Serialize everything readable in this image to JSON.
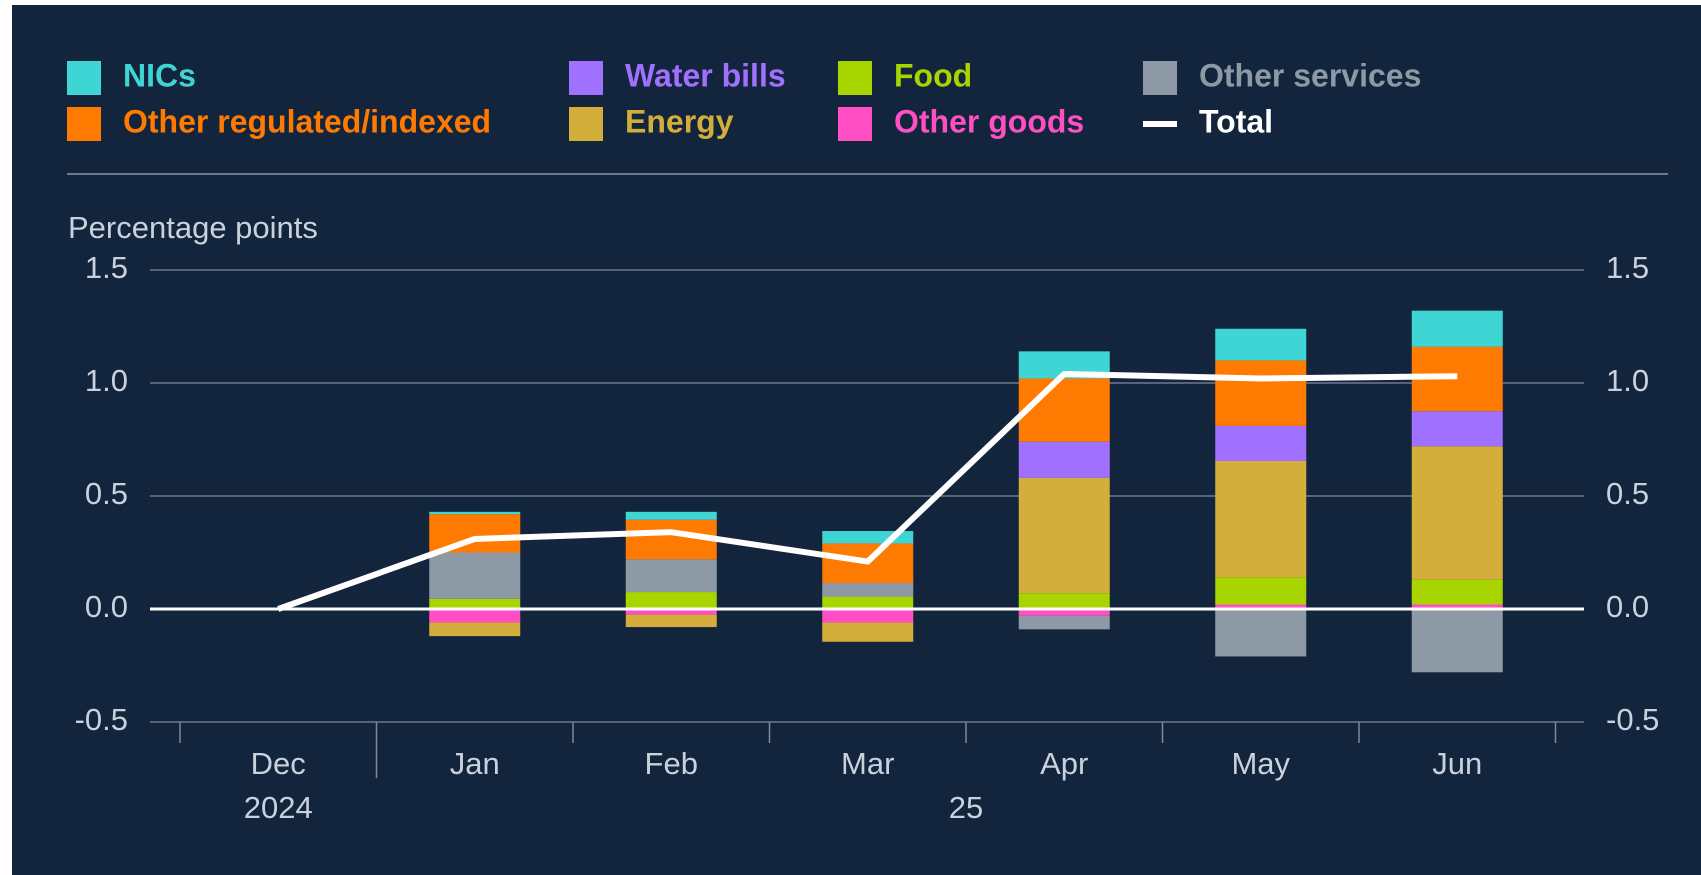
{
  "chart_data": {
    "type": "bar",
    "stacked": true,
    "axis_label": "Percentage points",
    "categories": [
      "Dec",
      "Jan",
      "Feb",
      "Mar",
      "Apr",
      "May",
      "Jun"
    ],
    "year_labels": [
      "2024",
      "25"
    ],
    "ylim": [
      -0.5,
      1.5
    ],
    "yticks": [
      {
        "value": -0.5,
        "label": "-0.5"
      },
      {
        "value": 0,
        "label": "0.0"
      },
      {
        "value": 0.5,
        "label": "0.5"
      },
      {
        "value": 1,
        "label": "1.0"
      },
      {
        "value": 1.5,
        "label": "1.5"
      }
    ],
    "grid": true,
    "series": [
      {
        "name": "Other goods",
        "color": "#ff4fc3",
        "values": [
          null,
          -0.06,
          -0.025,
          -0.06,
          -0.03,
          0.02,
          0.02
        ]
      },
      {
        "name": "Food",
        "color": "#a8d400",
        "values": [
          null,
          0.045,
          0.075,
          0.055,
          0.07,
          0.12,
          0.11
        ]
      },
      {
        "name": "Energy",
        "color": "#d4ae3a",
        "values": [
          null,
          -0.06,
          -0.055,
          -0.085,
          0.51,
          0.515,
          0.59
        ]
      },
      {
        "name": "Other services",
        "color": "#8e99a6",
        "values": [
          null,
          0.205,
          0.145,
          0.06,
          -0.06,
          -0.21,
          -0.28
        ]
      },
      {
        "name": "Water bills",
        "color": "#a070ff",
        "values": [
          null,
          0,
          0,
          0,
          0.16,
          0.155,
          0.155
        ]
      },
      {
        "name": "Other regulated/indexed",
        "color": "#ff7a00",
        "values": [
          null,
          0.17,
          0.175,
          0.175,
          0.28,
          0.29,
          0.285
        ]
      },
      {
        "name": "NICs",
        "color": "#3fd5d5",
        "values": [
          null,
          0.01,
          0.035,
          0.055,
          0.12,
          0.14,
          0.16
        ]
      },
      {
        "name": "Total",
        "type": "line",
        "color": "#ffffff",
        "values": [
          0,
          0.31,
          0.34,
          0.21,
          1.04,
          1.02,
          1.03
        ]
      }
    ]
  }
}
